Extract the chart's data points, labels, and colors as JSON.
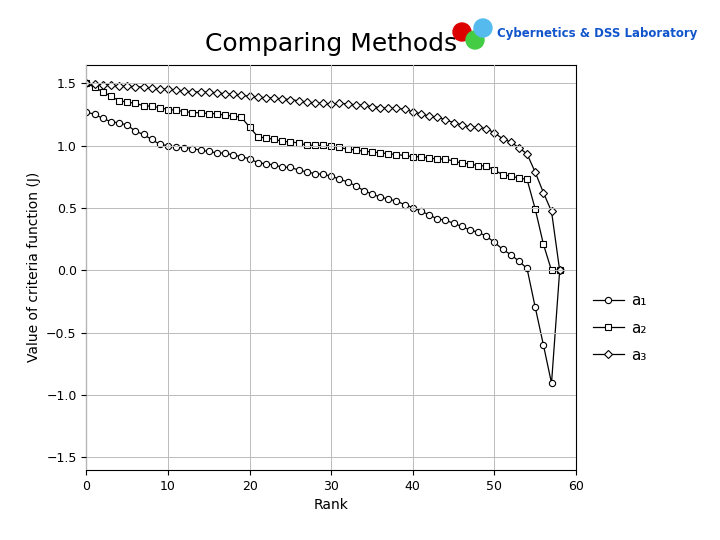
{
  "title": "Comparing Methods",
  "xlabel": "Rank",
  "ylabel": "Value of criteria function (J)",
  "xlim": [
    0,
    60
  ],
  "ylim": [
    -1.6,
    1.65
  ],
  "xticks": [
    0,
    10,
    20,
    30,
    40,
    50,
    60
  ],
  "yticks": [
    -1.5,
    -1.0,
    -0.5,
    0.0,
    0.5,
    1.0,
    1.5
  ],
  "grid": true,
  "legend_labels": [
    "a₁",
    "a₂",
    "a₃"
  ],
  "line_color": "#000000",
  "bg_color": "#ffffff",
  "title_fontsize": 18,
  "axis_fontsize": 10,
  "tick_fontsize": 9,
  "legend_fontsize": 11,
  "watermark_text": "Cybernetics & DSS Laboratory",
  "wm_colors": [
    "#ff0000",
    "#44cc44",
    "#44bbee"
  ],
  "wm_text_color": "#1155cc"
}
